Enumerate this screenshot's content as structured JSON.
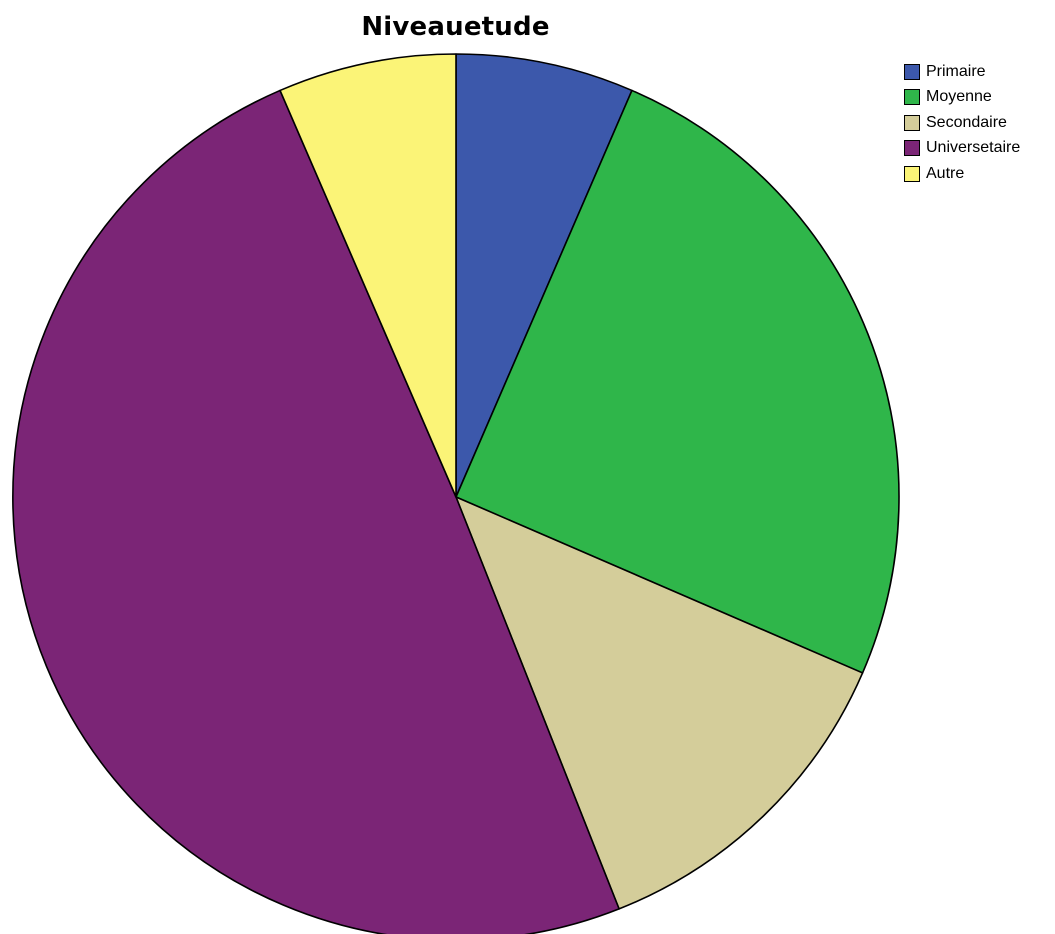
{
  "chart_data": {
    "type": "pie",
    "title": "Niveauetude",
    "start_angle_deg": 0,
    "direction": "clockwise",
    "legend_position": "top-right",
    "slices": [
      {
        "label": "Primaire",
        "value": 6.5,
        "color": "#3c58ab"
      },
      {
        "label": "Moyenne",
        "value": 25.0,
        "color": "#2fb64a"
      },
      {
        "label": "Secondaire",
        "value": 12.5,
        "color": "#d4cd9a"
      },
      {
        "label": "Universetaire",
        "value": 49.5,
        "color": "#7b2576"
      },
      {
        "label": "Autre",
        "value": 6.5,
        "color": "#fbf477"
      }
    ]
  }
}
